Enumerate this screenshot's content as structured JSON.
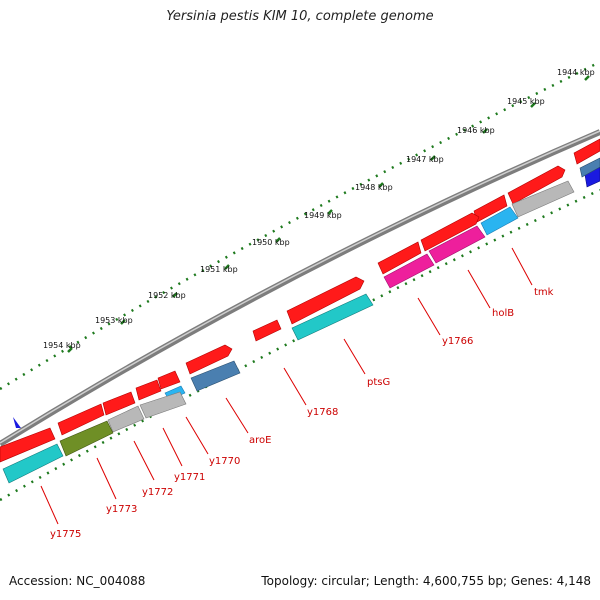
{
  "title": "Yersinia pestis KIM 10, complete genome",
  "footer": {
    "accession": "Accession: NC_004088",
    "topology": "Topology: circular; Length: 4,600,755 bp; Genes: 4,148"
  },
  "kbp_labels": [
    "1944 kbp",
    "1945 kbp",
    "1946 kbp",
    "1947 kbp",
    "1948 kbp",
    "1949 kbp",
    "1950 kbp",
    "1951 kbp",
    "1952 kbp",
    "1953 kbp",
    "1954 kbp"
  ],
  "gene_labels": [
    "tmk",
    "holB",
    "y1766",
    "ptsG",
    "y1768",
    "aroE",
    "y1770",
    "y1771",
    "y1772",
    "y1773",
    "y1775"
  ],
  "colors": {
    "ring": "#8c8c8c",
    "dots": "#1e7a1e",
    "forward_gene": "#ff1a1a",
    "label_text": "#cc0000",
    "leader_line": "#dd0000",
    "cyan": "#22c8c8",
    "magenta": "#ee1f9c",
    "grey_gene": "#b8b8b8",
    "olive": "#6f8f26",
    "steel_blue": "#4a7fb0",
    "sky_blue": "#2ab4f0",
    "navy": "#1a1ae0"
  },
  "icons": {
    "marker": "blue-arrowhead-icon"
  }
}
